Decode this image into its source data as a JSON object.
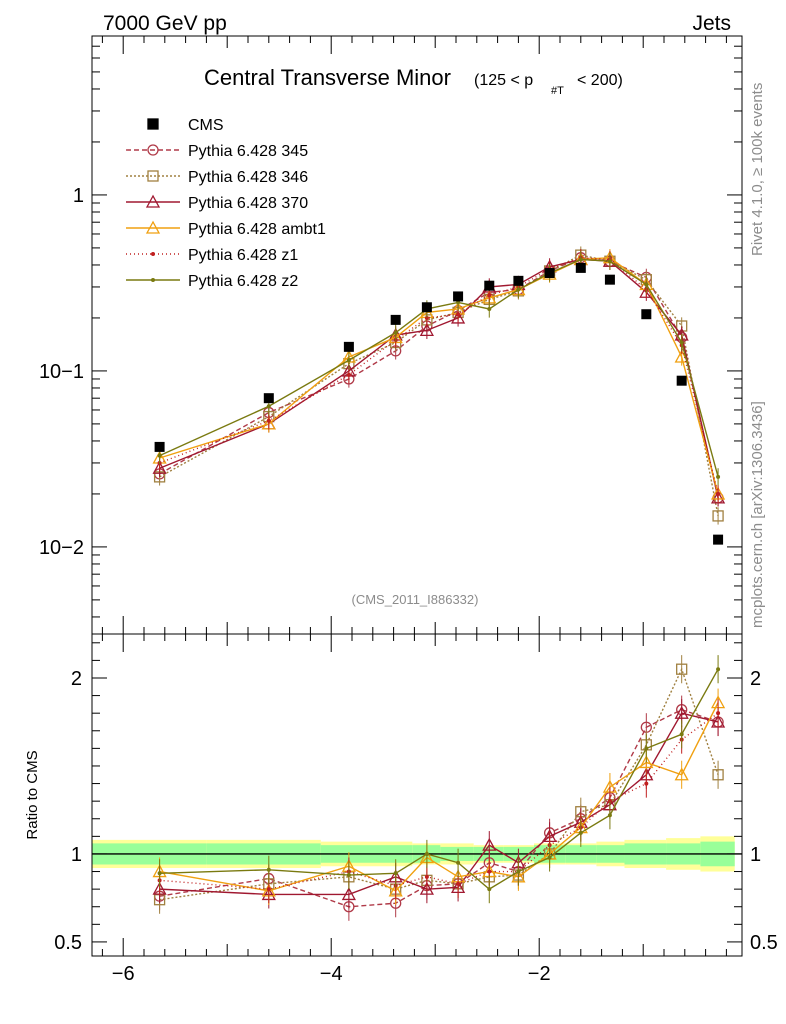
{
  "header": {
    "left": "7000 GeV pp",
    "right": "Jets"
  },
  "side_labels": {
    "rivet": "Rivet 4.1.0, ≥ 100k events",
    "site": "mcplots.cern.ch [arXiv:1306.3436]"
  },
  "watermark": "(CMS_2011_I886332)",
  "chart_data": {
    "type": "scatter",
    "title": "Central Transverse Minor",
    "title_range_prefix": "(125 < p",
    "title_range_sub": "#T",
    "title_range_suffix": "< 200)",
    "xlim": [
      -6.3,
      -0.05
    ],
    "main": {
      "yscale": "log",
      "ylim": [
        0.0032,
        8.0
      ],
      "yticks": [
        {
          "v": 0.01,
          "label": "10−2"
        },
        {
          "v": 0.1,
          "label": "10−1"
        },
        {
          "v": 1,
          "label": "1"
        }
      ]
    },
    "ratio": {
      "ylabel": "Ratio to CMS",
      "ylim": [
        0.42,
        2.25
      ],
      "yticks": [
        {
          "v": 0.5,
          "label": "0.5"
        },
        {
          "v": 1,
          "label": "1"
        },
        {
          "v": 2,
          "label": "2"
        }
      ]
    },
    "xticks": [
      {
        "v": -6,
        "label": "−6"
      },
      {
        "v": -4,
        "label": "−4"
      },
      {
        "v": -2,
        "label": "−2"
      }
    ],
    "x": [
      -5.65,
      -4.6,
      -3.83,
      -3.38,
      -3.08,
      -2.78,
      -2.48,
      -2.2,
      -1.9,
      -1.6,
      -1.32,
      -0.97,
      -0.63,
      -0.28
    ],
    "bin_edges": [
      -6.3,
      -5.2,
      -4.1,
      -3.55,
      -3.22,
      -2.95,
      -2.63,
      -2.34,
      -2.05,
      -1.75,
      -1.45,
      -1.18,
      -0.78,
      -0.45,
      -0.12
    ],
    "cms": [
      0.037,
      0.07,
      0.137,
      0.195,
      0.23,
      0.265,
      0.305,
      0.325,
      0.36,
      0.385,
      0.33,
      0.21,
      0.088,
      0.011
    ],
    "band_inner": [
      0.06,
      0.06,
      0.05,
      0.05,
      0.05,
      0.04,
      0.04,
      0.04,
      0.05,
      0.05,
      0.05,
      0.06,
      0.06,
      0.07
    ],
    "band_outer": [
      0.08,
      0.08,
      0.07,
      0.07,
      0.06,
      0.06,
      0.05,
      0.05,
      0.06,
      0.06,
      0.07,
      0.08,
      0.09,
      0.1
    ],
    "series": [
      {
        "name": "Pythia 6.428 345",
        "color": "#b03a48",
        "dash": "5,3",
        "marker": "circle",
        "values": [
          0.026,
          0.058,
          0.09,
          0.13,
          0.18,
          0.22,
          0.28,
          0.29,
          0.37,
          0.44,
          0.42,
          0.34,
          0.155,
          0.019
        ],
        "ratio": [
          0.76,
          0.86,
          0.7,
          0.72,
          0.82,
          0.83,
          0.95,
          0.9,
          1.12,
          1.2,
          1.32,
          1.72,
          1.82,
          1.75
        ]
      },
      {
        "name": "Pythia 6.428 346",
        "color": "#a08040",
        "dash": "2,2",
        "marker": "square",
        "values": [
          0.025,
          0.055,
          0.11,
          0.145,
          0.195,
          0.215,
          0.255,
          0.285,
          0.37,
          0.455,
          0.42,
          0.33,
          0.18,
          0.015
        ],
        "ratio": [
          0.74,
          0.83,
          0.87,
          0.8,
          0.85,
          0.83,
          0.87,
          0.88,
          1.0,
          1.24,
          1.28,
          1.62,
          2.05,
          1.45
        ]
      },
      {
        "name": "Pythia 6.428 370",
        "color": "#a01830",
        "dash": "",
        "marker": "triangle",
        "values": [
          0.028,
          0.05,
          0.1,
          0.16,
          0.17,
          0.2,
          0.3,
          0.31,
          0.39,
          0.43,
          0.42,
          0.28,
          0.16,
          0.019
        ],
        "ratio": [
          0.8,
          0.77,
          0.77,
          0.87,
          0.8,
          0.81,
          1.05,
          0.95,
          1.1,
          1.18,
          1.28,
          1.45,
          1.8,
          1.75
        ]
      },
      {
        "name": "Pythia 6.428 ambt1",
        "color": "#f0a010",
        "dash": "",
        "marker": "triangle",
        "values": [
          0.032,
          0.05,
          0.12,
          0.155,
          0.215,
          0.225,
          0.26,
          0.29,
          0.355,
          0.43,
          0.44,
          0.31,
          0.12,
          0.02
        ],
        "ratio": [
          0.9,
          0.79,
          0.93,
          0.79,
          0.98,
          0.87,
          0.9,
          0.87,
          1.0,
          1.15,
          1.38,
          1.52,
          1.45,
          1.86
        ]
      },
      {
        "name": "Pythia 6.428 z1",
        "color": "#c02020",
        "dash": "1,3",
        "marker": "dot",
        "values": [
          0.03,
          0.052,
          0.095,
          0.15,
          0.2,
          0.21,
          0.27,
          0.3,
          0.38,
          0.44,
          0.43,
          0.29,
          0.14,
          0.02
        ],
        "ratio": [
          0.85,
          0.8,
          0.9,
          0.82,
          0.87,
          0.83,
          0.9,
          0.9,
          1.05,
          1.15,
          1.3,
          1.4,
          1.65,
          1.8
        ]
      },
      {
        "name": "Pythia 6.428 z2",
        "color": "#7a7a10",
        "dash": "",
        "marker": "dot",
        "values": [
          0.033,
          0.063,
          0.115,
          0.165,
          0.225,
          0.245,
          0.225,
          0.29,
          0.36,
          0.43,
          0.42,
          0.31,
          0.145,
          0.025
        ],
        "ratio": [
          0.89,
          0.91,
          0.88,
          0.89,
          1.0,
          0.95,
          0.8,
          0.9,
          0.98,
          1.12,
          1.22,
          1.6,
          1.68,
          2.05
        ]
      }
    ]
  }
}
